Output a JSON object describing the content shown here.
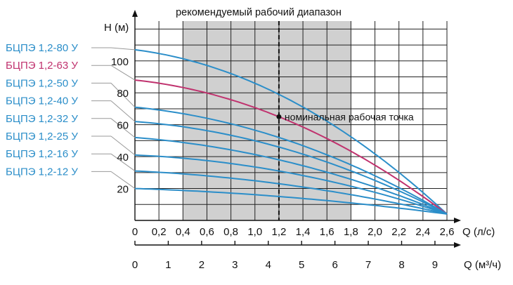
{
  "chart_data": {
    "type": "line",
    "title": "рекомендуемый рабочий диапазон",
    "ylabel": "H (м)",
    "xlabel": "Q (л/с)",
    "xlabel2": "Q (м³/ч)",
    "xlim": [
      0,
      2.6
    ],
    "ylim": [
      0,
      125
    ],
    "x_ticks": [
      "0",
      "0,2",
      "0,4",
      "0,6",
      "0,8",
      "1,0",
      "1,2",
      "1,4",
      "1,6",
      "1,8",
      "2,0",
      "2,2",
      "2,4",
      "2,6"
    ],
    "x2_ticks": [
      "0",
      "1",
      "2",
      "3",
      "4",
      "5",
      "6",
      "7",
      "8",
      "9"
    ],
    "y_ticks": [
      "20",
      "40",
      "60",
      "80",
      "100"
    ],
    "grid": true,
    "recommended_range": [
      0.4,
      1.8
    ],
    "nominal_flow": 1.2,
    "annotation": {
      "label": "номинальная рабочая точка",
      "x": 1.2,
      "y": 65
    },
    "end_point": {
      "x": 2.6,
      "y": 4
    },
    "series": [
      {
        "name": "БЦПЭ 1,2-80 У",
        "color": "#2b8ec9",
        "h0": 107,
        "y_at_nominal": 79
      },
      {
        "name": "БЦПЭ 1,2-63 У",
        "color": "#c0326e",
        "h0": 88,
        "y_at_nominal": 65
      },
      {
        "name": "БЦПЭ 1,2-50 У",
        "color": "#2b8ec9",
        "h0": 71,
        "y_at_nominal": 52
      },
      {
        "name": "БЦПЭ 1,2-40 У",
        "color": "#2b8ec9",
        "h0": 62,
        "y_at_nominal": 46
      },
      {
        "name": "БЦПЭ 1,2-32 У",
        "color": "#2b8ec9",
        "h0": 52,
        "y_at_nominal": 38
      },
      {
        "name": "БЦПЭ 1,2-25 У",
        "color": "#2b8ec9",
        "h0": 41,
        "y_at_nominal": 31
      },
      {
        "name": "БЦПЭ 1,2-16 У",
        "color": "#2b8ec9",
        "h0": 31,
        "y_at_nominal": 23
      },
      {
        "name": "БЦПЭ 1,2-12 У",
        "color": "#2b8ec9",
        "h0": 20,
        "y_at_nominal": 15
      }
    ]
  }
}
